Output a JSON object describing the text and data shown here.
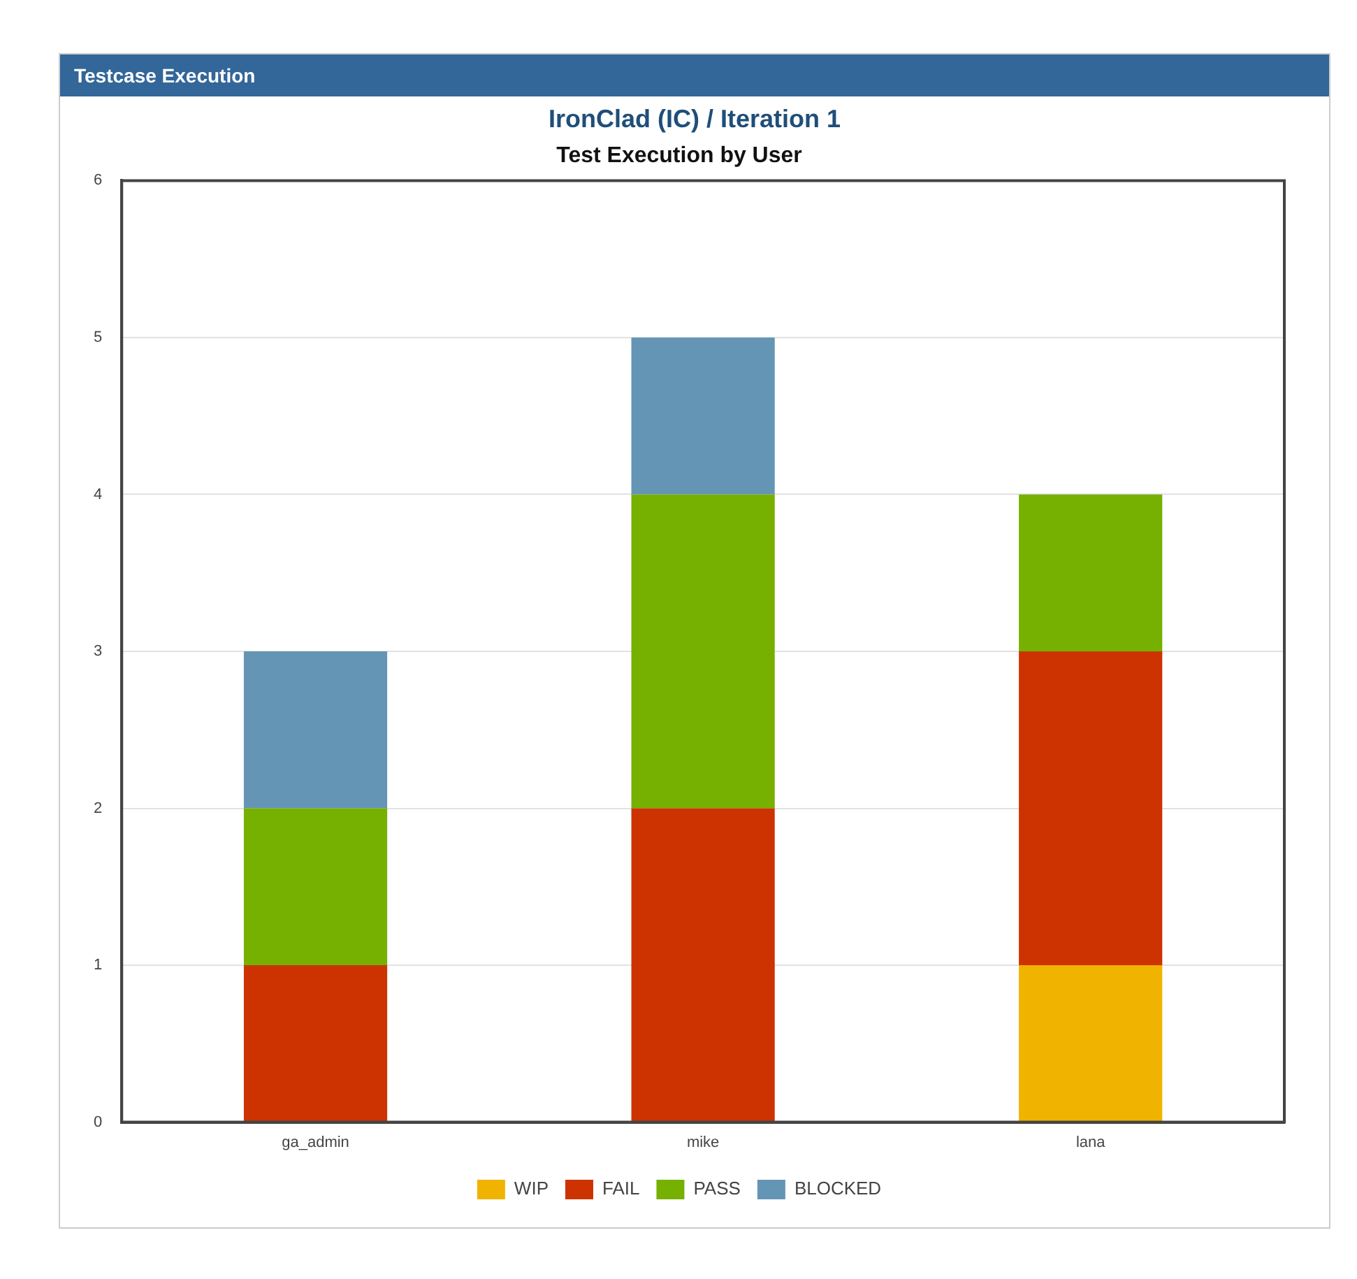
{
  "chart_data": {
    "type": "bar",
    "title": "Test Execution by User",
    "subtitle": "IronClad (IC) / Iteration 1",
    "annotations": [
      "Testcase Execution"
    ],
    "categories": [
      "ga_admin",
      "mike",
      "lana"
    ],
    "series": [
      {
        "name": "WIP",
        "color": "#f0b400",
        "values": [
          0,
          0,
          1
        ]
      },
      {
        "name": "FAIL",
        "color": "#cc3300",
        "values": [
          1,
          2,
          2
        ]
      },
      {
        "name": "PASS",
        "color": "#76b000",
        "values": [
          1,
          2,
          1
        ]
      },
      {
        "name": "BLOCKED",
        "color": "#6595b4",
        "values": [
          1,
          1,
          0
        ]
      }
    ],
    "stacked": true,
    "ylim": [
      0,
      6
    ],
    "yticks": [
      0,
      1,
      2,
      3,
      4,
      5,
      6
    ],
    "grid": "y",
    "legend": "bottom"
  }
}
